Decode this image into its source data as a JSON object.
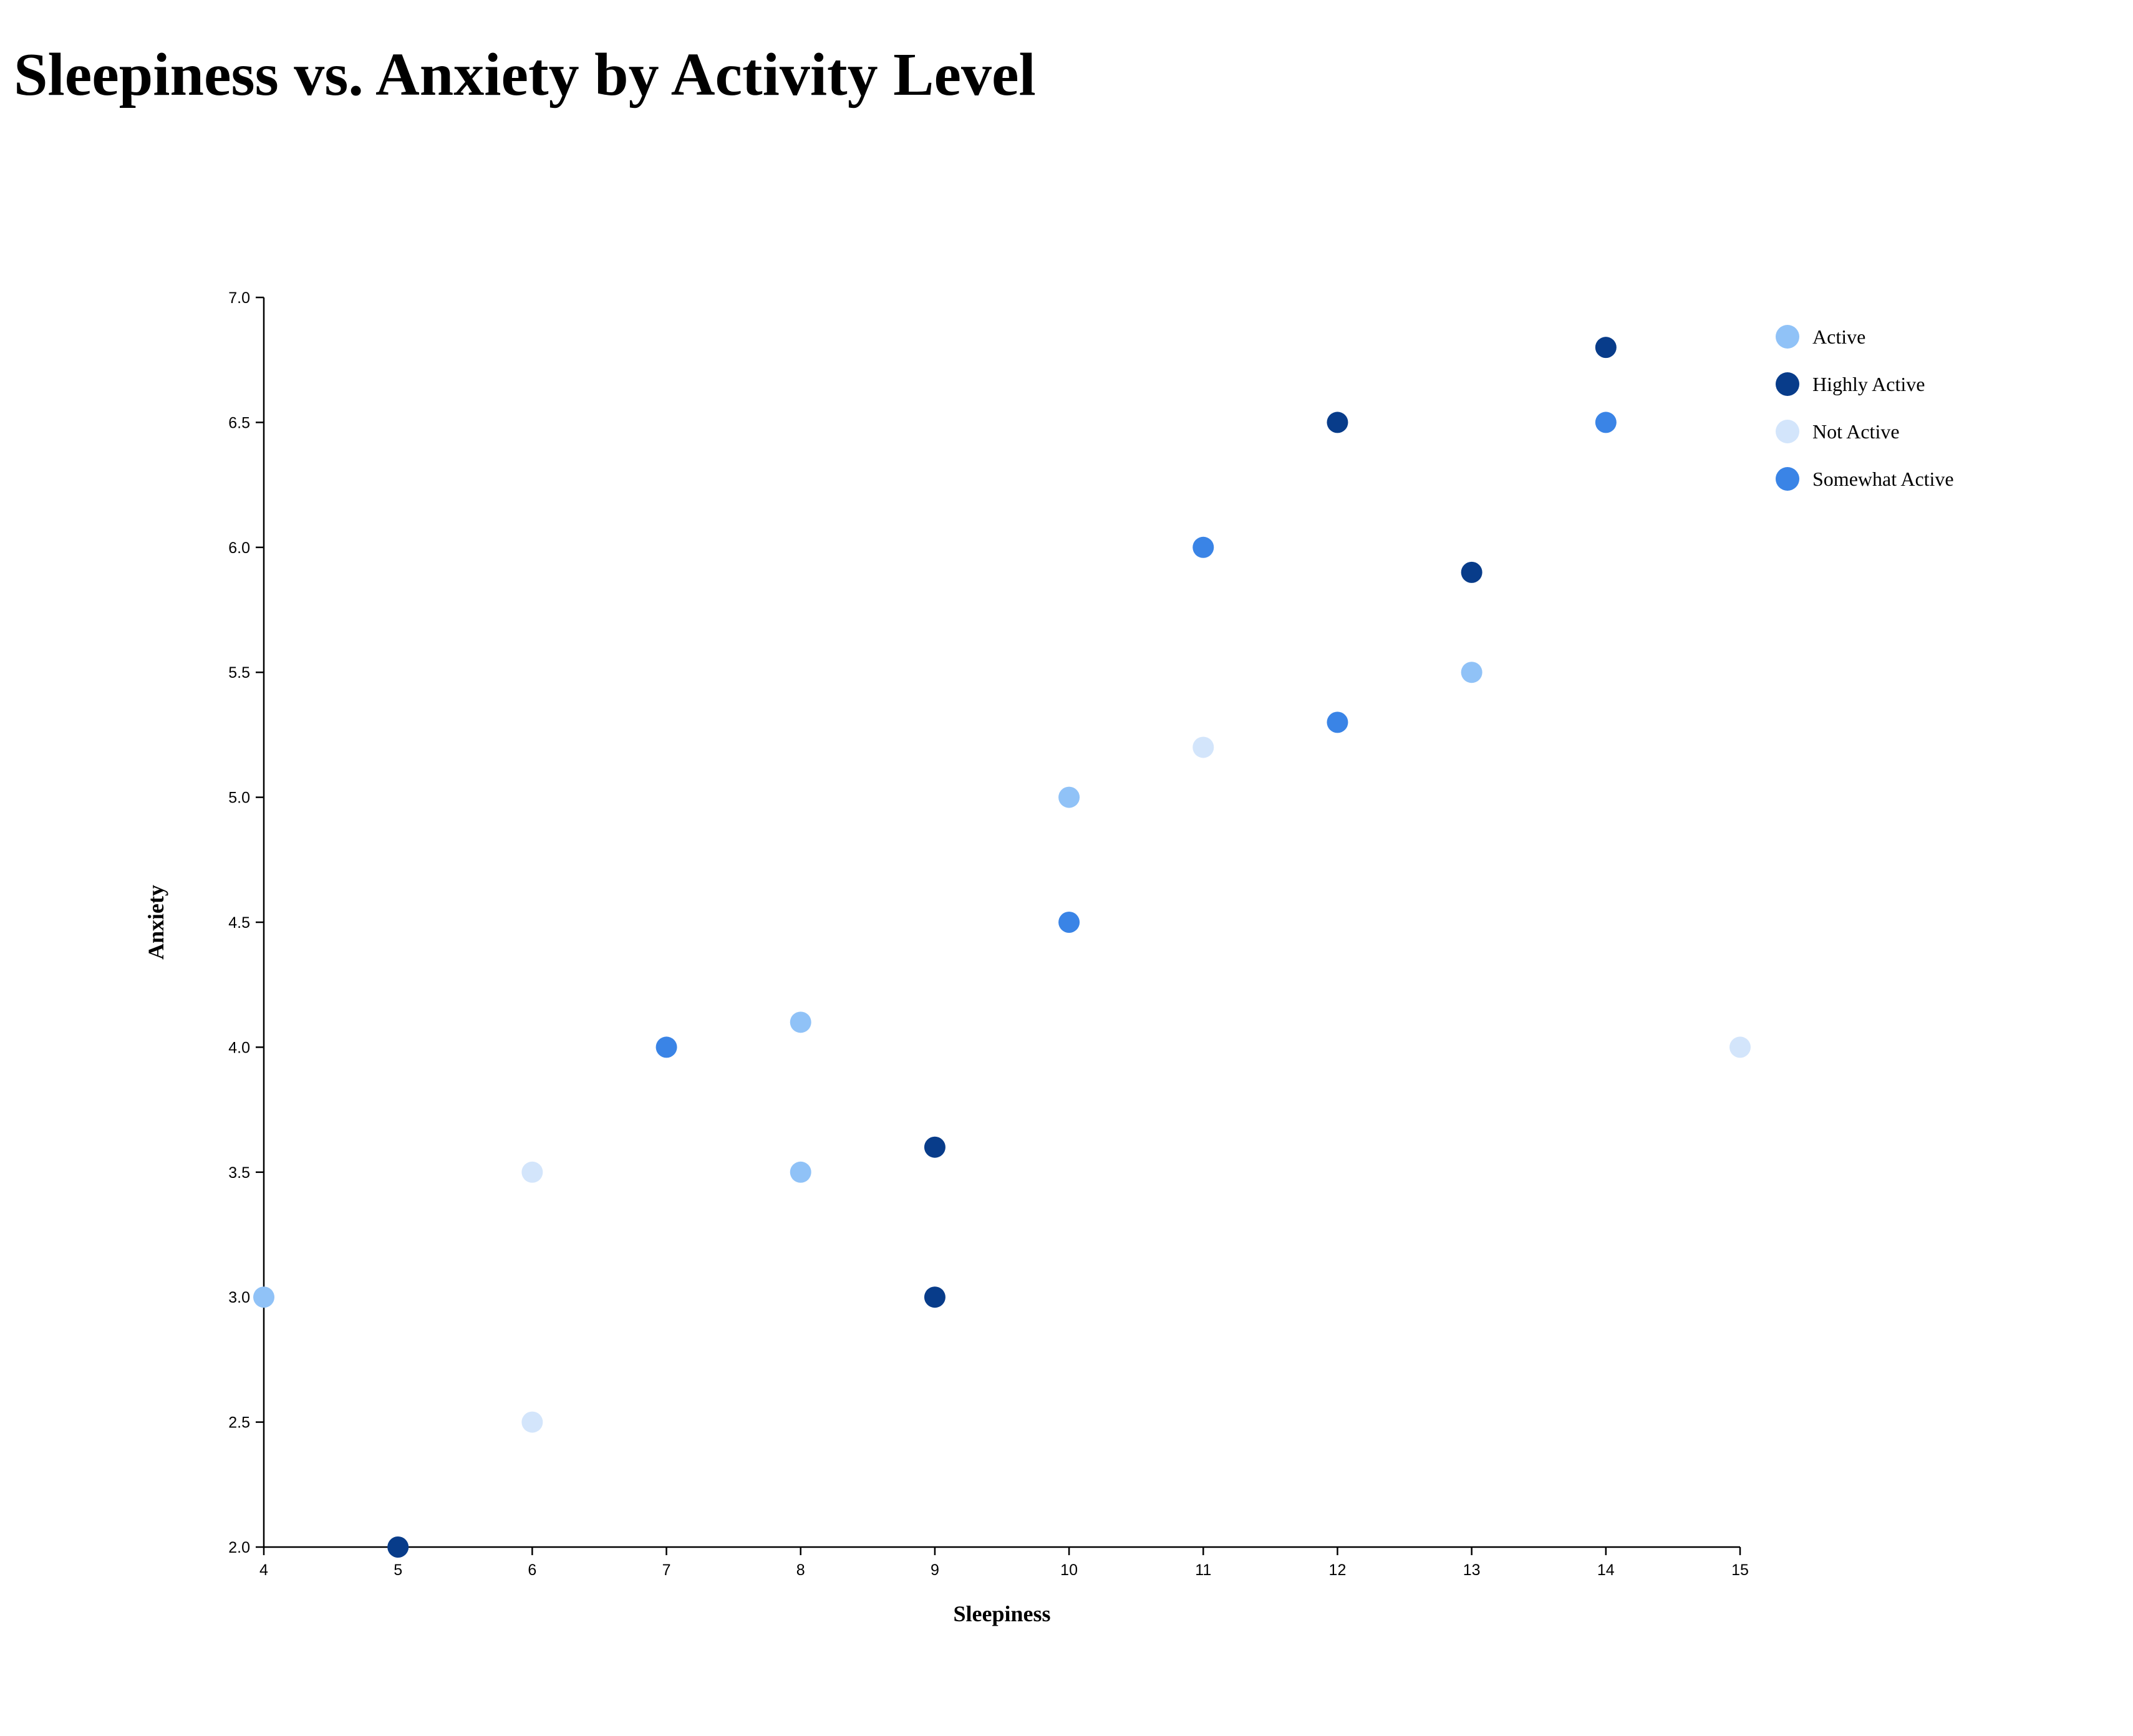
{
  "chart_data": {
    "type": "scatter",
    "title": "Sleepiness vs. Anxiety by Activity Level",
    "xlabel": "Sleepiness",
    "ylabel": "Anxiety",
    "xlim": [
      4,
      15
    ],
    "ylim": [
      2.0,
      7.0
    ],
    "x_ticks": [
      4,
      5,
      6,
      7,
      8,
      9,
      10,
      11,
      12,
      13,
      14,
      15
    ],
    "y_ticks": [
      "2.0",
      "2.5",
      "3.0",
      "3.5",
      "4.0",
      "4.5",
      "5.0",
      "5.5",
      "6.0",
      "6.5",
      "7.0"
    ],
    "grid": false,
    "legend_position": "top-right",
    "series": [
      {
        "name": "Active",
        "color": "#90c2f7",
        "points": [
          [
            4,
            3.0
          ],
          [
            8,
            4.1
          ],
          [
            8,
            3.5
          ],
          [
            10,
            5.0
          ],
          [
            13,
            5.5
          ]
        ]
      },
      {
        "name": "Highly Active",
        "color": "#083c8a",
        "points": [
          [
            5,
            2.0
          ],
          [
            9,
            3.6
          ],
          [
            9,
            3.0
          ],
          [
            12,
            6.5
          ],
          [
            13,
            5.9
          ],
          [
            14,
            6.8
          ]
        ]
      },
      {
        "name": "Not Active",
        "color": "#d3e5fb",
        "points": [
          [
            6,
            3.5
          ],
          [
            6,
            2.5
          ],
          [
            11,
            5.2
          ],
          [
            15,
            4.0
          ]
        ]
      },
      {
        "name": "Somewhat Active",
        "color": "#3a84e6",
        "points": [
          [
            7,
            4.0
          ],
          [
            10,
            4.5
          ],
          [
            11,
            6.0
          ],
          [
            12,
            5.3
          ],
          [
            14,
            6.5
          ]
        ]
      }
    ]
  }
}
